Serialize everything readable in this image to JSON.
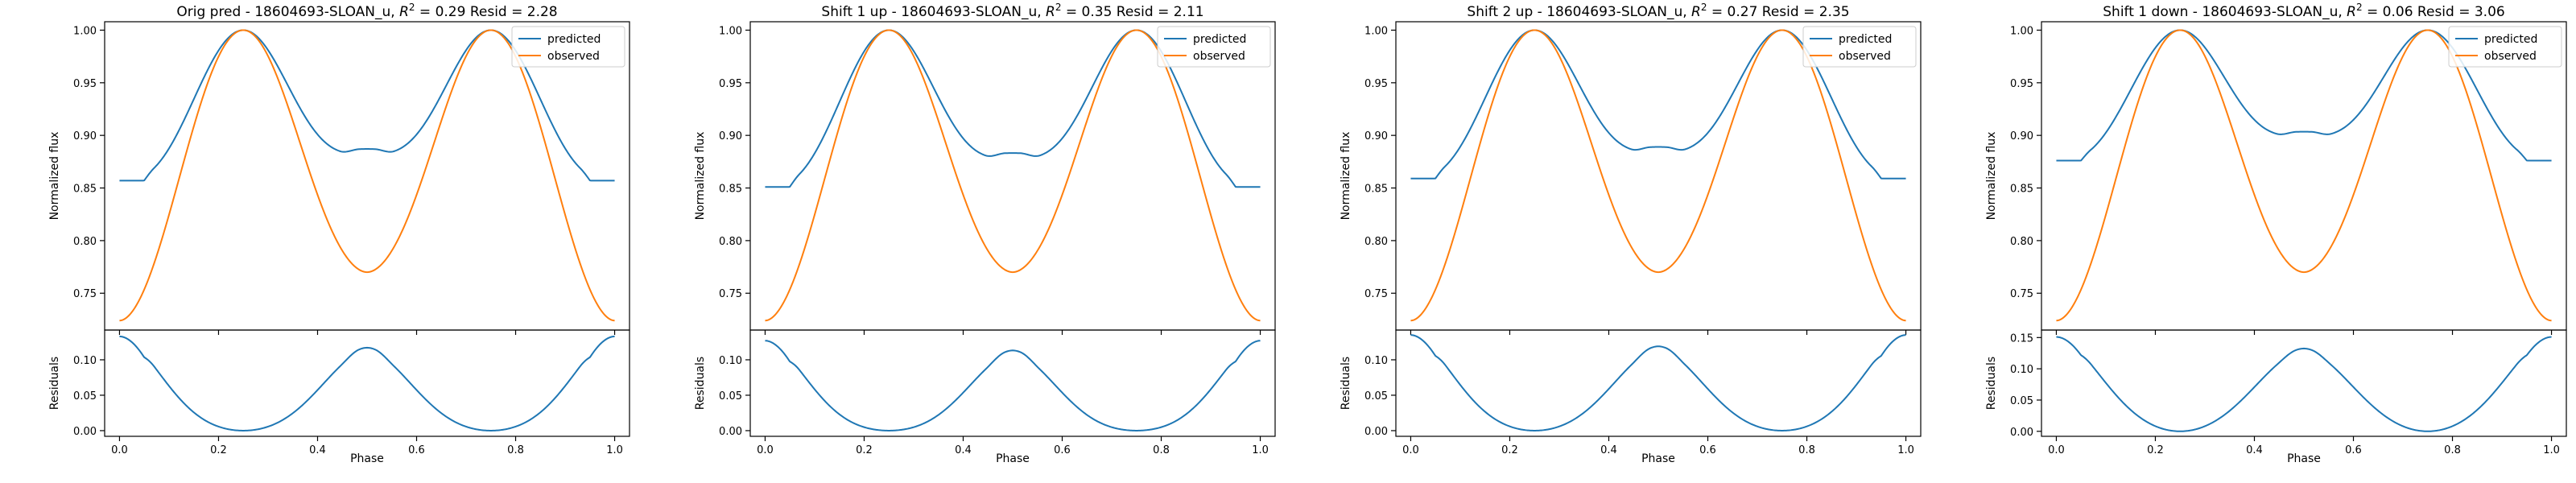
{
  "colors": {
    "predicted": "#1f77b4",
    "observed": "#ff7f0e",
    "axis": "#000000",
    "legend_border": "#cccccc"
  },
  "legend_labels": [
    "predicted",
    "observed"
  ],
  "chart_data": [
    {
      "type": "line",
      "title_prefix": "Orig pred - 18604693-SLOAN_u, ",
      "r2_symbol": "R",
      "r2_sup": "2",
      "title_suffix": " = 0.29 Resid = 2.28",
      "legend_placement": "top-right",
      "grid": false,
      "top": {
        "ylabel": "Normalized flux",
        "ylim": [
          0.715,
          1.008
        ],
        "yticks": [
          "0.75",
          "0.80",
          "0.85",
          "0.90",
          "0.95",
          "1.00"
        ],
        "series": [
          {
            "name": "predicted",
            "base": 0.857,
            "dip": 0.883
          },
          {
            "name": "observed",
            "base": 0.724,
            "dip": 0.77
          }
        ]
      },
      "bottom": {
        "ylabel": "Residuals",
        "xlabel": "Phase",
        "ylim": [
          -0.008,
          0.142
        ],
        "yticks": [
          "0.00",
          "0.05",
          "0.10"
        ],
        "xticks": [
          "0.0",
          "0.2",
          "0.4",
          "0.6",
          "0.8",
          "1.0"
        ],
        "xlim": [
          -0.03,
          1.03
        ],
        "resid_edge": 0.133,
        "resid_mid": 0.113
      }
    },
    {
      "type": "line",
      "title_prefix": "Shift 1 up - 18604693-SLOAN_u, ",
      "r2_symbol": "R",
      "r2_sup": "2",
      "title_suffix": " = 0.35 Resid = 2.11",
      "legend_placement": "top-right",
      "grid": false,
      "top": {
        "ylabel": "Normalized flux",
        "ylim": [
          0.715,
          1.008
        ],
        "yticks": [
          "0.75",
          "0.80",
          "0.85",
          "0.90",
          "0.95",
          "1.00"
        ],
        "series": [
          {
            "name": "predicted",
            "base": 0.851,
            "dip": 0.879
          },
          {
            "name": "observed",
            "base": 0.724,
            "dip": 0.77
          }
        ]
      },
      "bottom": {
        "ylabel": "Residuals",
        "xlabel": "Phase",
        "ylim": [
          -0.008,
          0.142
        ],
        "yticks": [
          "0.00",
          "0.05",
          "0.10"
        ],
        "xticks": [
          "0.0",
          "0.2",
          "0.4",
          "0.6",
          "0.8",
          "1.0"
        ],
        "xlim": [
          -0.03,
          1.03
        ],
        "resid_edge": 0.127,
        "resid_mid": 0.109
      }
    },
    {
      "type": "line",
      "title_prefix": "Shift 2 up - 18604693-SLOAN_u, ",
      "r2_symbol": "R",
      "r2_sup": "2",
      "title_suffix": " = 0.27 Resid = 2.35",
      "legend_placement": "top-right",
      "grid": false,
      "top": {
        "ylabel": "Normalized flux",
        "ylim": [
          0.715,
          1.008
        ],
        "yticks": [
          "0.75",
          "0.80",
          "0.85",
          "0.90",
          "0.95",
          "1.00"
        ],
        "series": [
          {
            "name": "predicted",
            "base": 0.859,
            "dip": 0.885
          },
          {
            "name": "observed",
            "base": 0.724,
            "dip": 0.77
          }
        ]
      },
      "bottom": {
        "ylabel": "Residuals",
        "xlabel": "Phase",
        "ylim": [
          -0.008,
          0.142
        ],
        "yticks": [
          "0.00",
          "0.05",
          "0.10"
        ],
        "xticks": [
          "0.0",
          "0.2",
          "0.4",
          "0.6",
          "0.8",
          "1.0"
        ],
        "xlim": [
          -0.03,
          1.03
        ],
        "resid_edge": 0.135,
        "resid_mid": 0.115
      }
    },
    {
      "type": "line",
      "title_prefix": "Shift 1 down - 18604693-SLOAN_u, ",
      "r2_symbol": "R",
      "r2_sup": "2",
      "title_suffix": " = 0.06 Resid = 3.06",
      "legend_placement": "top-right",
      "grid": false,
      "top": {
        "ylabel": "Normalized flux",
        "ylim": [
          0.715,
          1.008
        ],
        "yticks": [
          "0.75",
          "0.80",
          "0.85",
          "0.90",
          "0.95",
          "1.00"
        ],
        "series": [
          {
            "name": "predicted",
            "base": 0.876,
            "dip": 0.9
          },
          {
            "name": "observed",
            "base": 0.724,
            "dip": 0.77
          }
        ]
      },
      "bottom": {
        "ylabel": "Residuals",
        "xlabel": "Phase",
        "ylim": [
          -0.008,
          0.162
        ],
        "yticks": [
          "0.00",
          "0.05",
          "0.10",
          "0.15"
        ],
        "xticks": [
          "0.0",
          "0.2",
          "0.4",
          "0.6",
          "0.8",
          "1.0"
        ],
        "xlim": [
          -0.03,
          1.03
        ],
        "resid_edge": 0.151,
        "resid_mid": 0.129
      }
    }
  ]
}
